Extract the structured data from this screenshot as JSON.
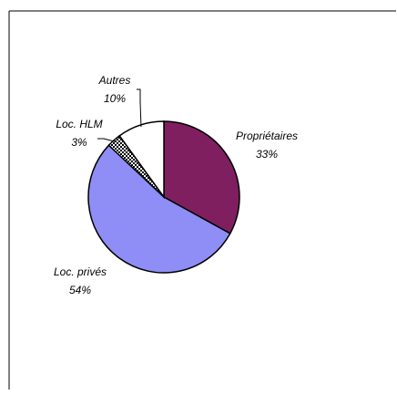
{
  "chart_data": {
    "type": "pie",
    "title": "",
    "slices": [
      {
        "label": "Propriétaires",
        "value": 33,
        "value_label": "33%",
        "color": "#7f1f5f",
        "pattern": "solid"
      },
      {
        "label": "Loc. privés",
        "value": 54,
        "value_label": "54%",
        "color": "#8e8ef6",
        "pattern": "solid"
      },
      {
        "label": "Loc. HLM",
        "value": 3,
        "value_label": "3%",
        "color": "#000000",
        "pattern": "checkered"
      },
      {
        "label": "Autres",
        "value": 10,
        "value_label": "10%",
        "color": "#ffffff",
        "pattern": "solid"
      }
    ],
    "start_angle_deg": 0,
    "direction": "clockwise",
    "legend": "none",
    "data_labels": "outside"
  }
}
